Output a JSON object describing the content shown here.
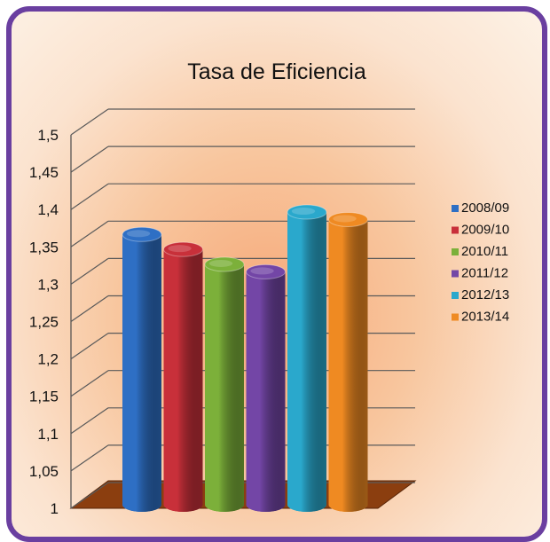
{
  "chart_data": {
    "type": "bar",
    "title": "Tasa de Eficiencia",
    "categories": [
      "2008/09",
      "2009/10",
      "2010/11",
      "2011/12",
      "2012/13",
      "2013/14"
    ],
    "values": [
      1.35,
      1.33,
      1.31,
      1.3,
      1.38,
      1.37
    ],
    "ylim": [
      1,
      1.5
    ],
    "y_ticks": [
      "1",
      "1,05",
      "1,1",
      "1,15",
      "1,2",
      "1,25",
      "1,3",
      "1,35",
      "1,4",
      "1,45",
      "1,5"
    ],
    "legend": {
      "position": "right",
      "entries": [
        "2008/09",
        "2009/10",
        "2010/11",
        "2011/12",
        "2012/13",
        "2013/14"
      ]
    },
    "colors": [
      "#2e6fc4",
      "#c8303a",
      "#7cb03a",
      "#7346a6",
      "#2aa8cc",
      "#ef8a22"
    ],
    "grid": true
  }
}
